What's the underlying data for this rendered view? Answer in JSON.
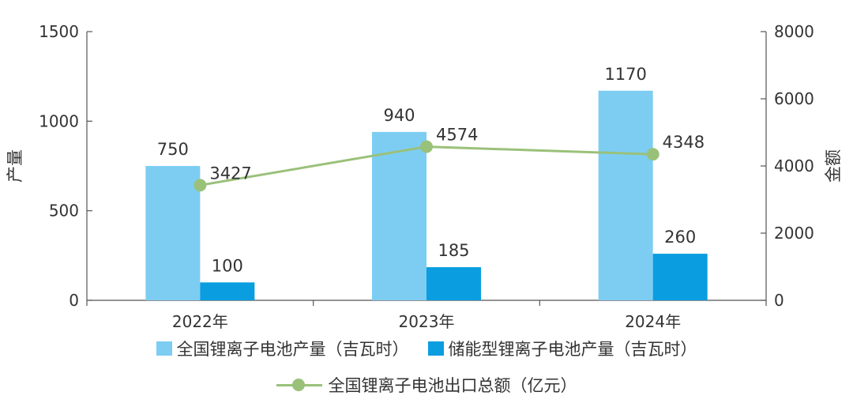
{
  "chart_data": {
    "type": "bar",
    "categories": [
      "2022年",
      "2023年",
      "2024年"
    ],
    "ylabel_left": "产量",
    "ylabel_right": "金额",
    "ylim_left": [
      0,
      1500
    ],
    "ylim_right": [
      0,
      8000
    ],
    "yticks_left": [
      0,
      500,
      1000,
      1500
    ],
    "yticks_right": [
      0,
      2000,
      4000,
      6000,
      8000
    ],
    "series": [
      {
        "name": "全国锂离子电池产量（吉瓦时）",
        "type": "bar",
        "axis": "left",
        "color": "#7dcdf3",
        "values": [
          750,
          940,
          1170
        ]
      },
      {
        "name": "储能型锂离子电池产量（吉瓦时）",
        "type": "bar",
        "axis": "left",
        "color": "#0a9de0",
        "values": [
          100,
          185,
          260
        ]
      },
      {
        "name": "全国锂离子电池出口总额（亿元）",
        "type": "line",
        "axis": "right",
        "color": "#9ac17a",
        "values": [
          3427,
          4574,
          4348
        ]
      }
    ]
  }
}
